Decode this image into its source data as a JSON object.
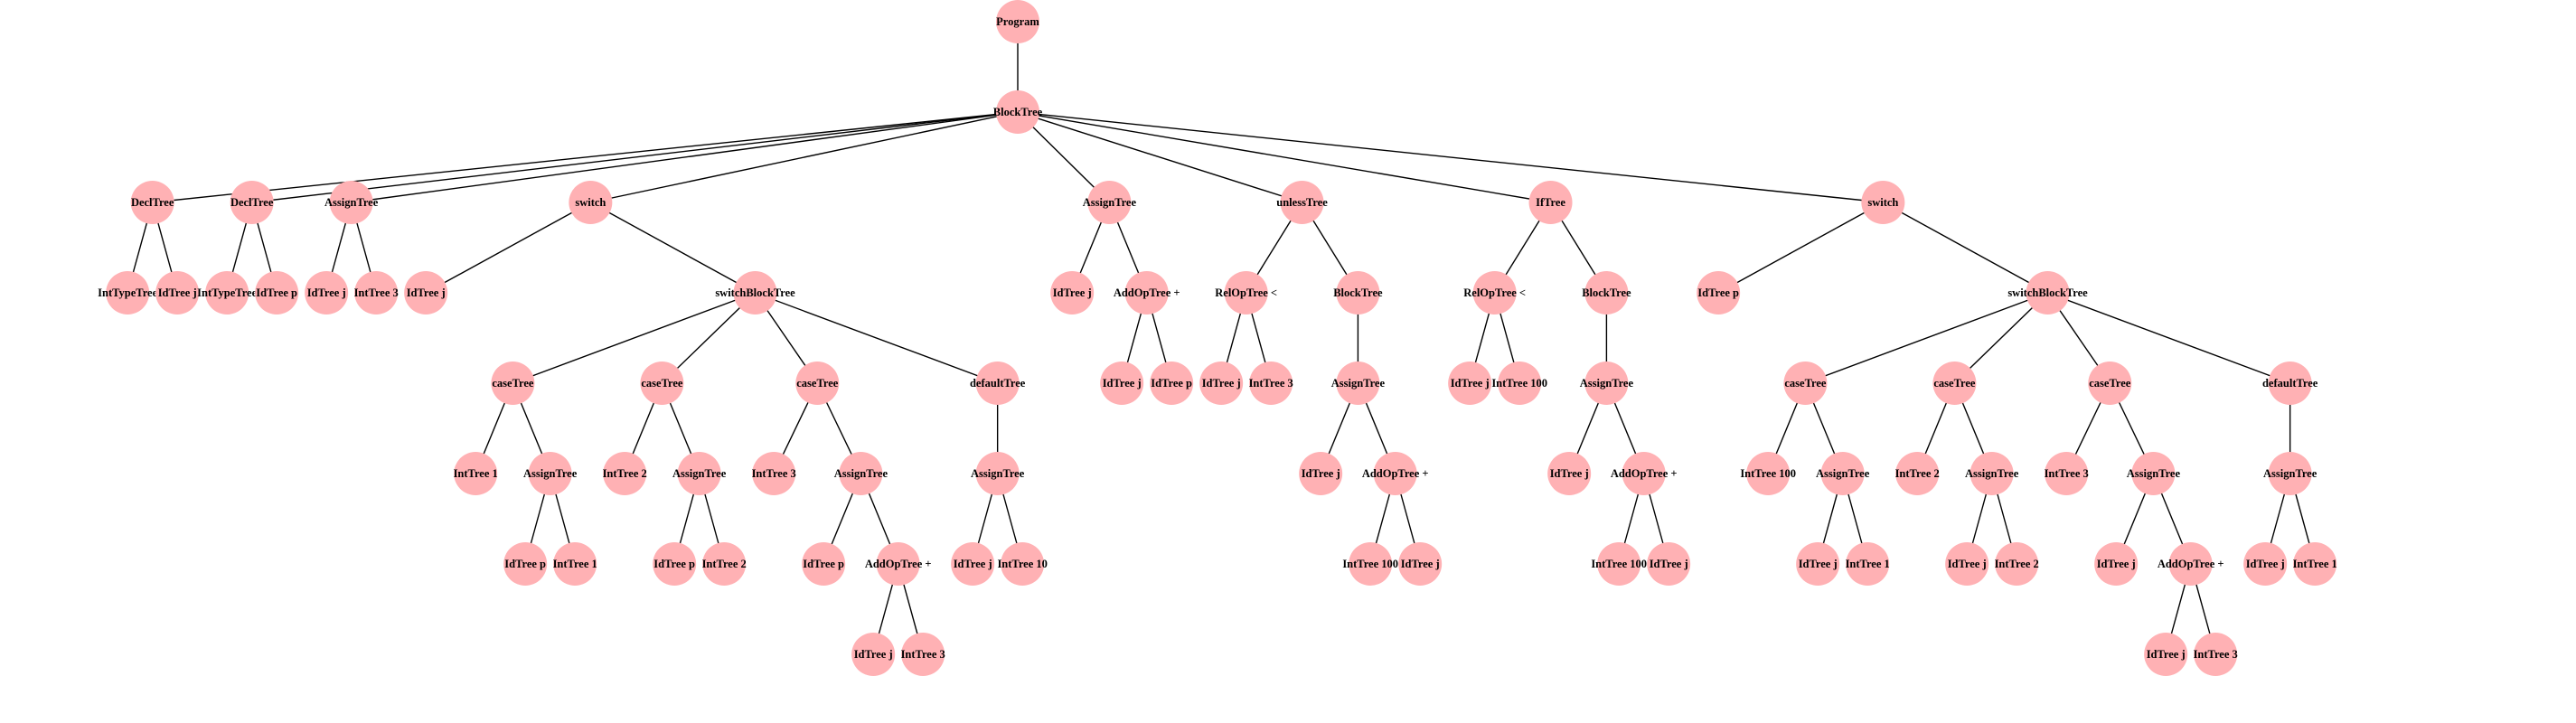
{
  "diagram": {
    "node_color": "#ffb1b4",
    "edge_color": "#000000",
    "root": {
      "label": "Program",
      "children": [
        {
          "label": "BlockTree",
          "children": [
            {
              "label": "DeclTree",
              "children": [
                {
                  "label": "IntTypeTree"
                },
                {
                  "label": "IdTree j"
                }
              ]
            },
            {
              "label": "DeclTree",
              "children": [
                {
                  "label": "IntTypeTree"
                },
                {
                  "label": "IdTree p"
                }
              ]
            },
            {
              "label": "AssignTree",
              "children": [
                {
                  "label": "IdTree j"
                },
                {
                  "label": "IntTree 3"
                }
              ]
            },
            {
              "label": "switch",
              "children": [
                {
                  "label": "IdTree j"
                },
                {
                  "label": "switchBlockTree",
                  "children": [
                    {
                      "label": "caseTree",
                      "children": [
                        {
                          "label": "IntTree 1"
                        },
                        {
                          "label": "AssignTree",
                          "children": [
                            {
                              "label": "IdTree p"
                            },
                            {
                              "label": "IntTree 1"
                            }
                          ]
                        }
                      ]
                    },
                    {
                      "label": "caseTree",
                      "children": [
                        {
                          "label": "IntTree 2"
                        },
                        {
                          "label": "AssignTree",
                          "children": [
                            {
                              "label": "IdTree p"
                            },
                            {
                              "label": "IntTree 2"
                            }
                          ]
                        }
                      ]
                    },
                    {
                      "label": "caseTree",
                      "children": [
                        {
                          "label": "IntTree 3"
                        },
                        {
                          "label": "AssignTree",
                          "children": [
                            {
                              "label": "IdTree p"
                            },
                            {
                              "label": "AddOpTree +",
                              "children": [
                                {
                                  "label": "IdTree j"
                                },
                                {
                                  "label": "IntTree 3"
                                }
                              ]
                            }
                          ]
                        }
                      ]
                    },
                    {
                      "label": "defaultTree",
                      "children": [
                        {
                          "label": "AssignTree",
                          "children": [
                            {
                              "label": "IdTree j"
                            },
                            {
                              "label": "IntTree 10"
                            }
                          ]
                        }
                      ]
                    }
                  ]
                }
              ]
            },
            {
              "label": "AssignTree",
              "children": [
                {
                  "label": "IdTree j"
                },
                {
                  "label": "AddOpTree +",
                  "children": [
                    {
                      "label": "IdTree j"
                    },
                    {
                      "label": "IdTree p"
                    }
                  ]
                }
              ]
            },
            {
              "label": "unlessTree",
              "children": [
                {
                  "label": "RelOpTree <",
                  "children": [
                    {
                      "label": "IdTree j"
                    },
                    {
                      "label": "IntTree 3"
                    }
                  ]
                },
                {
                  "label": "BlockTree",
                  "children": [
                    {
                      "label": "AssignTree",
                      "children": [
                        {
                          "label": "IdTree j"
                        },
                        {
                          "label": "AddOpTree +",
                          "children": [
                            {
                              "label": "IntTree 100"
                            },
                            {
                              "label": "IdTree j"
                            }
                          ]
                        }
                      ]
                    }
                  ]
                }
              ]
            },
            {
              "label": "IfTree",
              "children": [
                {
                  "label": "RelOpTree <",
                  "children": [
                    {
                      "label": "IdTree j"
                    },
                    {
                      "label": "IntTree 100"
                    }
                  ]
                },
                {
                  "label": "BlockTree",
                  "children": [
                    {
                      "label": "AssignTree",
                      "children": [
                        {
                          "label": "IdTree j"
                        },
                        {
                          "label": "AddOpTree +",
                          "children": [
                            {
                              "label": "IntTree 100"
                            },
                            {
                              "label": "IdTree j"
                            }
                          ]
                        }
                      ]
                    }
                  ]
                }
              ]
            },
            {
              "label": "switch",
              "children": [
                {
                  "label": "IdTree p"
                },
                {
                  "label": "switchBlockTree",
                  "children": [
                    {
                      "label": "caseTree",
                      "children": [
                        {
                          "label": "IntTree 100"
                        },
                        {
                          "label": "AssignTree",
                          "children": [
                            {
                              "label": "IdTree j"
                            },
                            {
                              "label": "IntTree 1"
                            }
                          ]
                        }
                      ]
                    },
                    {
                      "label": "caseTree",
                      "children": [
                        {
                          "label": "IntTree 2"
                        },
                        {
                          "label": "AssignTree",
                          "children": [
                            {
                              "label": "IdTree j"
                            },
                            {
                              "label": "IntTree 2"
                            }
                          ]
                        }
                      ]
                    },
                    {
                      "label": "caseTree",
                      "children": [
                        {
                          "label": "IntTree 3"
                        },
                        {
                          "label": "AssignTree",
                          "children": [
                            {
                              "label": "IdTree j"
                            },
                            {
                              "label": "AddOpTree +",
                              "children": [
                                {
                                  "label": "IdTree j"
                                },
                                {
                                  "label": "IntTree 3"
                                }
                              ]
                            }
                          ]
                        }
                      ]
                    },
                    {
                      "label": "defaultTree",
                      "children": [
                        {
                          "label": "AssignTree",
                          "children": [
                            {
                              "label": "IdTree j"
                            },
                            {
                              "label": "IntTree 1"
                            }
                          ]
                        }
                      ]
                    }
                  ]
                }
              ]
            }
          ]
        }
      ]
    }
  }
}
